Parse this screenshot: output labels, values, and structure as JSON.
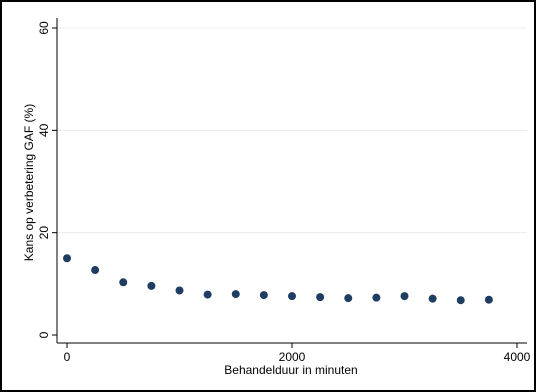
{
  "chart_data": {
    "type": "scatter",
    "title": "",
    "xlabel": "Behandelduur in minuten",
    "ylabel": "Kans op verbetering GAF (%)",
    "xlim": [
      0,
      4000
    ],
    "ylim": [
      0,
      60
    ],
    "xticks": [
      0,
      2000,
      4000
    ],
    "yticks": [
      0,
      20,
      40,
      60
    ],
    "grid": "horizontal",
    "marker_color": "#1f3d63",
    "series": [
      {
        "x": [
          0,
          250,
          500,
          750,
          1000,
          1250,
          1500,
          1750,
          2000,
          2250,
          2500,
          2750,
          3000,
          3250,
          3500,
          3750
        ],
        "y": [
          15,
          12.7,
          10.3,
          9.6,
          8.7,
          7.9,
          8.0,
          7.8,
          7.6,
          7.4,
          7.2,
          7.3,
          7.6,
          7.1,
          6.8,
          6.9
        ]
      }
    ]
  }
}
